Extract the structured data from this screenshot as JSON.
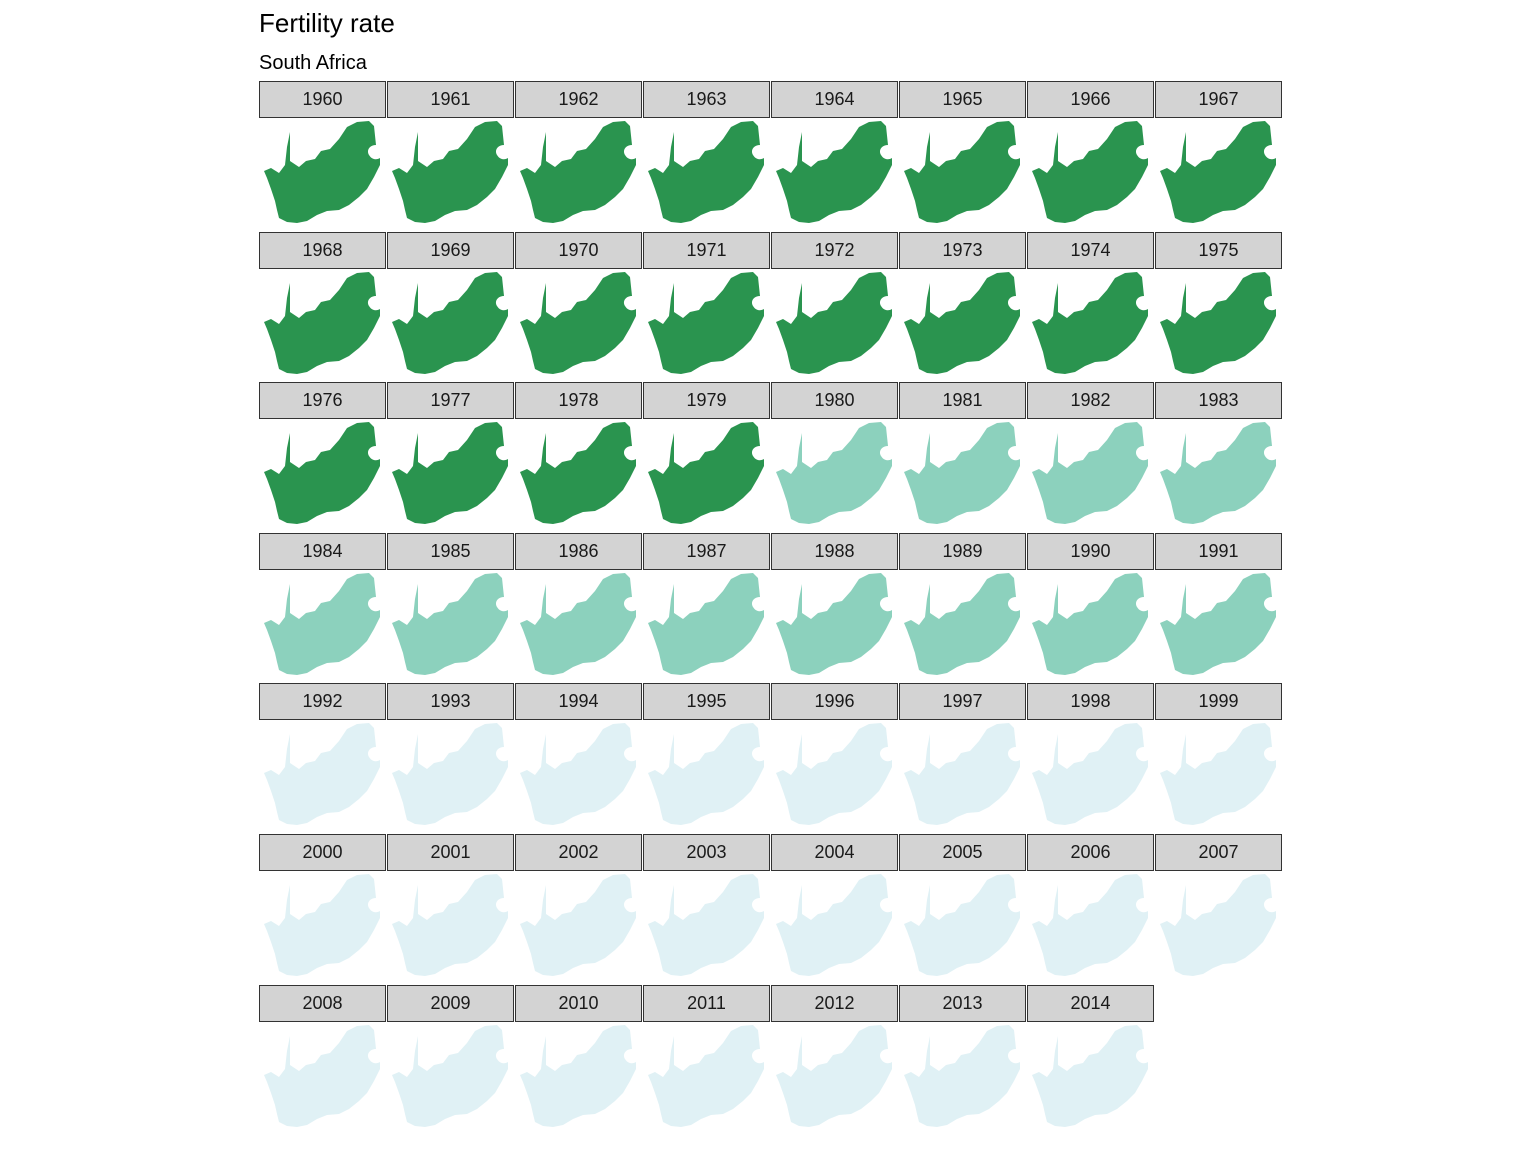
{
  "chart_data": {
    "type": "choropleth-facet",
    "title": "Fertility rate",
    "subtitle": "South Africa",
    "region": "South Africa",
    "facet_columns": 8,
    "fill_palette": {
      "high": "#2a944f",
      "medium": "#8cd1bd",
      "low": "#e0f1f5"
    },
    "facets": [
      {
        "year": "1960",
        "level": "high"
      },
      {
        "year": "1961",
        "level": "high"
      },
      {
        "year": "1962",
        "level": "high"
      },
      {
        "year": "1963",
        "level": "high"
      },
      {
        "year": "1964",
        "level": "high"
      },
      {
        "year": "1965",
        "level": "high"
      },
      {
        "year": "1966",
        "level": "high"
      },
      {
        "year": "1967",
        "level": "high"
      },
      {
        "year": "1968",
        "level": "high"
      },
      {
        "year": "1969",
        "level": "high"
      },
      {
        "year": "1970",
        "level": "high"
      },
      {
        "year": "1971",
        "level": "high"
      },
      {
        "year": "1972",
        "level": "high"
      },
      {
        "year": "1973",
        "level": "high"
      },
      {
        "year": "1974",
        "level": "high"
      },
      {
        "year": "1975",
        "level": "high"
      },
      {
        "year": "1976",
        "level": "high"
      },
      {
        "year": "1977",
        "level": "high"
      },
      {
        "year": "1978",
        "level": "high"
      },
      {
        "year": "1979",
        "level": "high"
      },
      {
        "year": "1980",
        "level": "medium"
      },
      {
        "year": "1981",
        "level": "medium"
      },
      {
        "year": "1982",
        "level": "medium"
      },
      {
        "year": "1983",
        "level": "medium"
      },
      {
        "year": "1984",
        "level": "medium"
      },
      {
        "year": "1985",
        "level": "medium"
      },
      {
        "year": "1986",
        "level": "medium"
      },
      {
        "year": "1987",
        "level": "medium"
      },
      {
        "year": "1988",
        "level": "medium"
      },
      {
        "year": "1989",
        "level": "medium"
      },
      {
        "year": "1990",
        "level": "medium"
      },
      {
        "year": "1991",
        "level": "medium"
      },
      {
        "year": "1992",
        "level": "low"
      },
      {
        "year": "1993",
        "level": "low"
      },
      {
        "year": "1994",
        "level": "low"
      },
      {
        "year": "1995",
        "level": "low"
      },
      {
        "year": "1996",
        "level": "low"
      },
      {
        "year": "1997",
        "level": "low"
      },
      {
        "year": "1998",
        "level": "low"
      },
      {
        "year": "1999",
        "level": "low"
      },
      {
        "year": "2000",
        "level": "low"
      },
      {
        "year": "2001",
        "level": "low"
      },
      {
        "year": "2002",
        "level": "low"
      },
      {
        "year": "2003",
        "level": "low"
      },
      {
        "year": "2004",
        "level": "low"
      },
      {
        "year": "2005",
        "level": "low"
      },
      {
        "year": "2006",
        "level": "low"
      },
      {
        "year": "2007",
        "level": "low"
      },
      {
        "year": "2008",
        "level": "low"
      },
      {
        "year": "2009",
        "level": "low"
      },
      {
        "year": "2010",
        "level": "low"
      },
      {
        "year": "2011",
        "level": "low"
      },
      {
        "year": "2012",
        "level": "low"
      },
      {
        "year": "2013",
        "level": "low"
      },
      {
        "year": "2014",
        "level": "low"
      }
    ]
  }
}
